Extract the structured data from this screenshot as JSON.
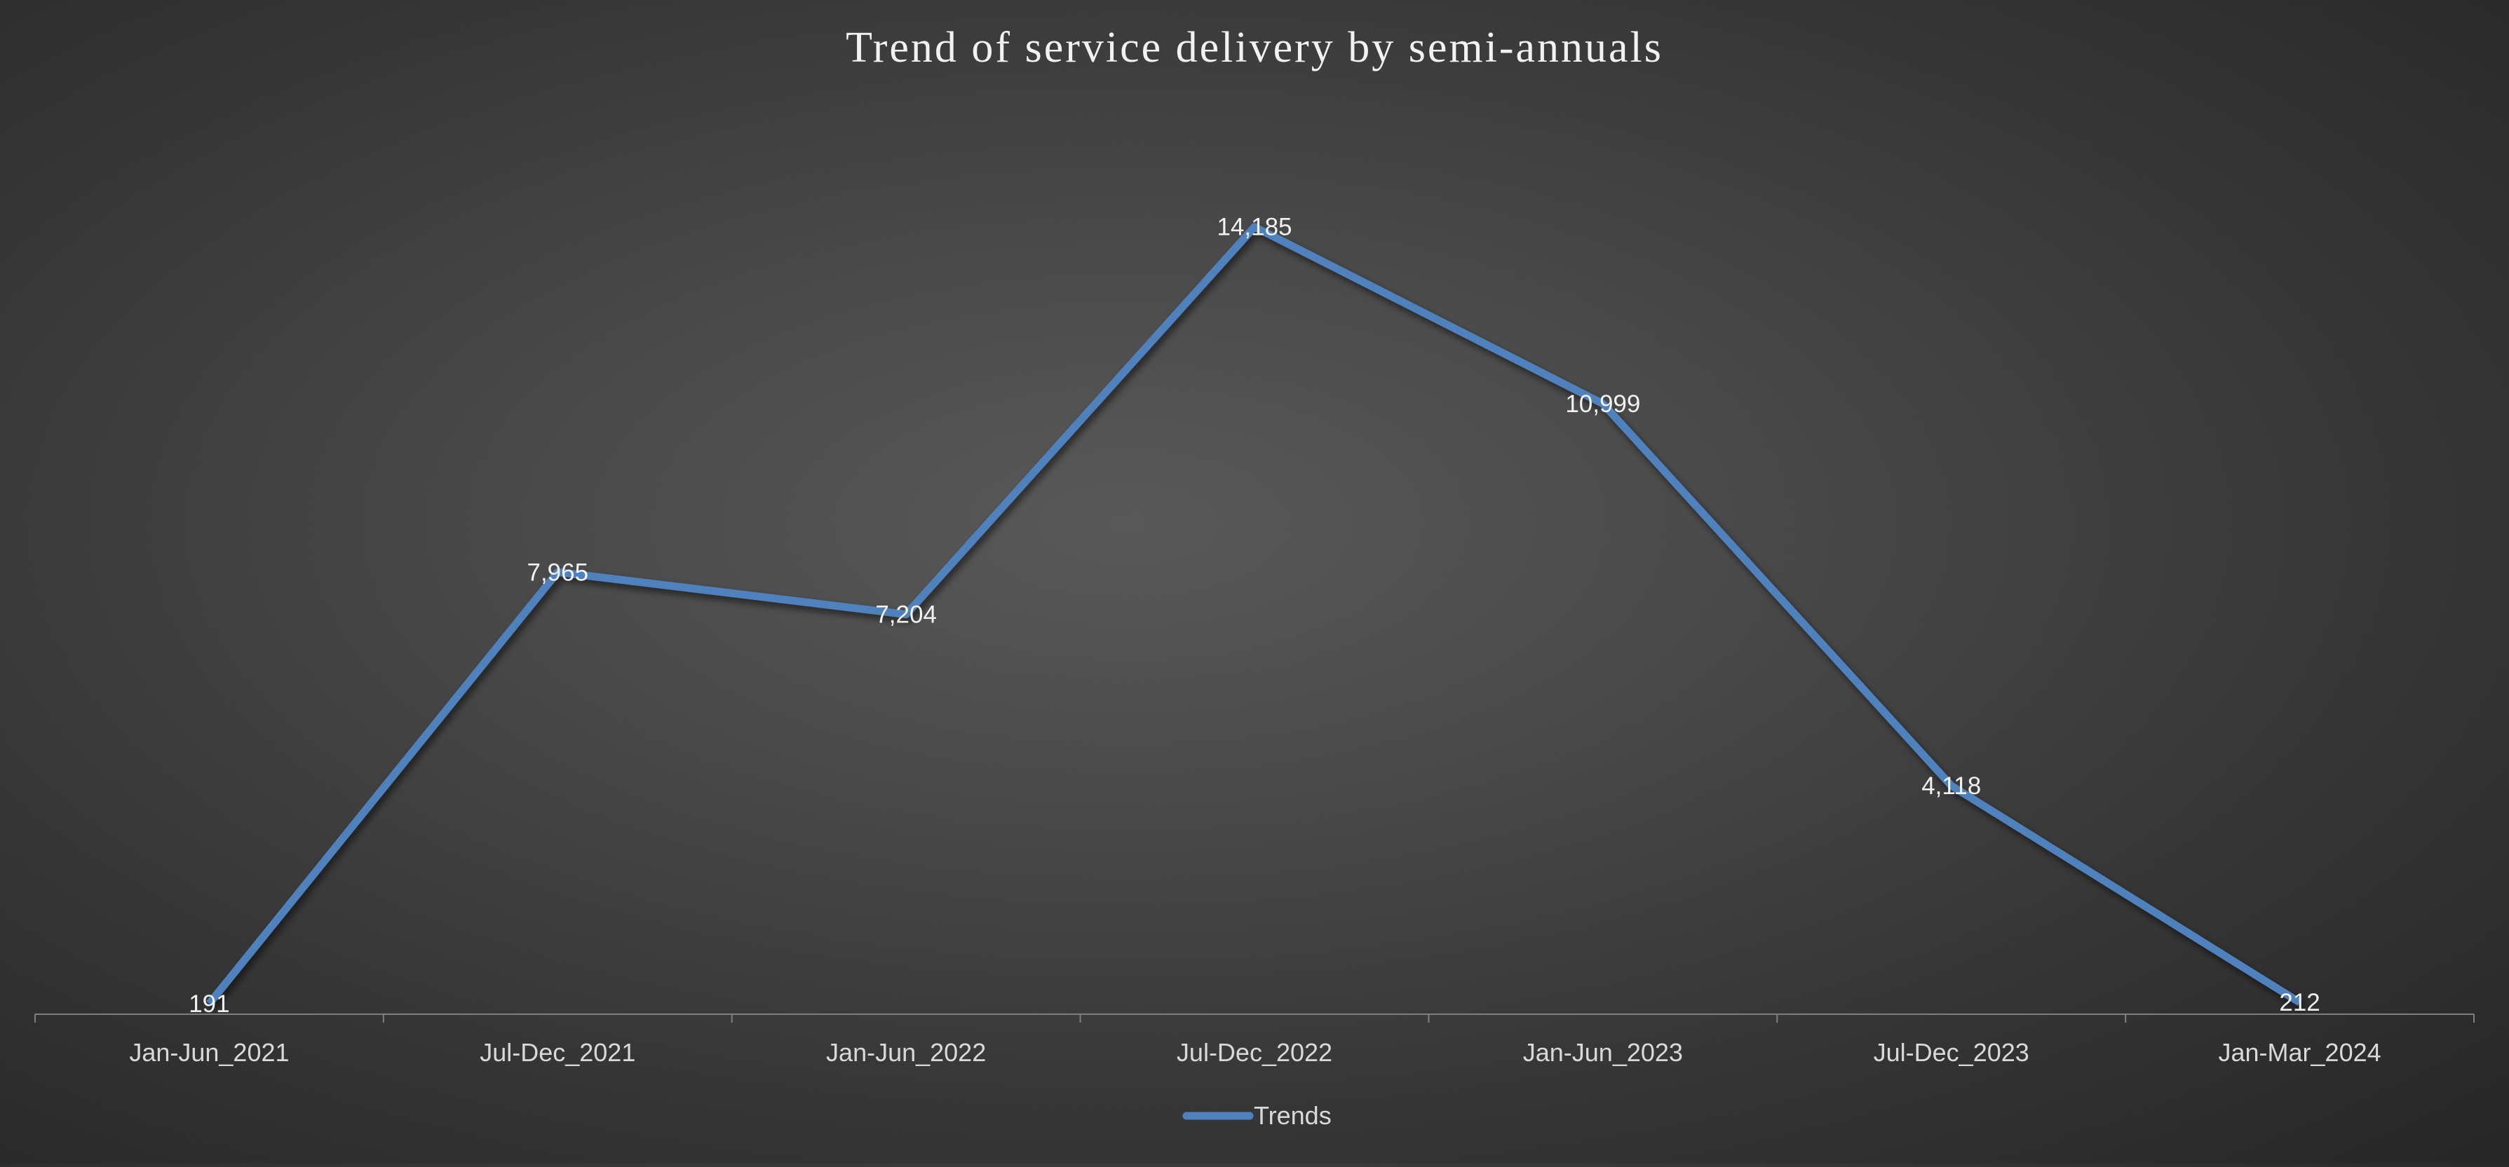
{
  "chart_data": {
    "type": "line",
    "title": "Trend of service delivery by semi-annuals",
    "categories": [
      "Jan-Jun_2021",
      "Jul-Dec_2021",
      "Jan-Jun_2022",
      "Jul-Dec_2022",
      "Jan-Jun_2023",
      "Jul-Dec_2023",
      "Jan-Mar_2024"
    ],
    "series": [
      {
        "name": "Trends",
        "values": [
          191,
          7965,
          7204,
          14185,
          10999,
          4118,
          212
        ],
        "labels": [
          "191",
          "7,965",
          "7,204",
          "14,185",
          "10,999",
          "4,118",
          "212"
        ],
        "color": "#4f81bd"
      }
    ],
    "ylim": [
      0,
      16000
    ],
    "grid": false,
    "legend_position": "bottom",
    "background": "#4a4a4a"
  }
}
